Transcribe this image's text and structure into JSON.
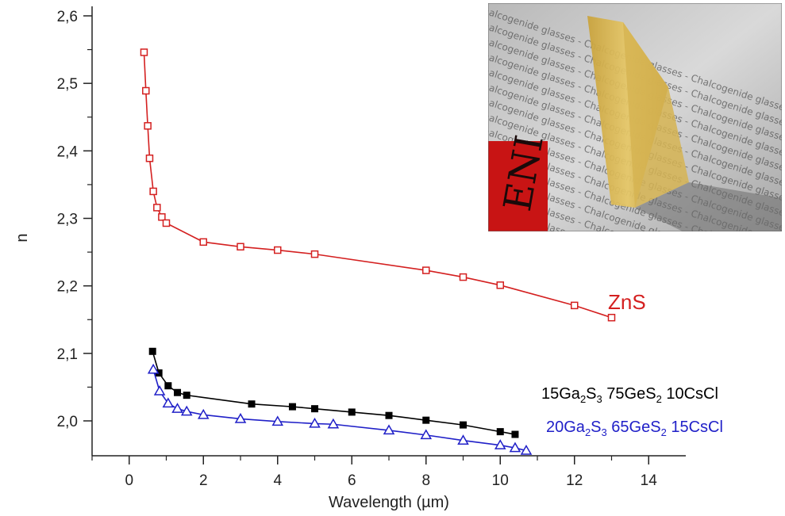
{
  "chart_data": {
    "type": "line",
    "title": "",
    "xlabel": "Wavelength (µm)",
    "ylabel": "n",
    "xlim": [
      -1,
      15
    ],
    "ylim": [
      1.95,
      2.6
    ],
    "x_ticks": [
      "0",
      "2",
      "4",
      "6",
      "8",
      "10",
      "12",
      "14"
    ],
    "y_ticks": [
      "2,0",
      "2,1",
      "2,2",
      "2,3",
      "2,4",
      "2,5",
      "2,6"
    ],
    "grid": false,
    "legend": "none",
    "series": [
      {
        "name": "ZnS",
        "color": "#d42020",
        "marker": "open-square",
        "x": [
          0.4,
          0.45,
          0.5,
          0.55,
          0.65,
          0.75,
          0.88,
          1.0,
          2.0,
          3.0,
          4.0,
          5.0,
          8.0,
          9.0,
          10.0,
          12.0,
          13.0
        ],
        "y": [
          2.546,
          2.489,
          2.437,
          2.389,
          2.34,
          2.316,
          2.302,
          2.293,
          2.265,
          2.258,
          2.253,
          2.247,
          2.223,
          2.213,
          2.201,
          2.171,
          2.153
        ]
      },
      {
        "label_parts": [
          "15Ga",
          "2",
          "S",
          "3",
          " 75GeS",
          "2",
          " 10CsCl"
        ],
        "color": "#000000",
        "marker": "filled-square",
        "x": [
          0.63,
          0.8,
          1.05,
          1.3,
          1.55,
          3.3,
          4.4,
          5.0,
          6.0,
          7.0,
          8.0,
          9.0,
          10.0,
          10.4
        ],
        "y": [
          2.103,
          2.071,
          2.052,
          2.042,
          2.038,
          2.025,
          2.021,
          2.018,
          2.013,
          2.008,
          2.001,
          1.994,
          1.984,
          1.98
        ]
      },
      {
        "label_parts": [
          "20Ga",
          "2",
          "S",
          "3",
          " 65GeS",
          "2",
          " 15CsCl"
        ],
        "color": "#2020c8",
        "marker": "open-triangle",
        "x": [
          0.65,
          0.82,
          1.05,
          1.3,
          1.55,
          2.0,
          3.0,
          4.0,
          5.0,
          5.5,
          7.0,
          8.0,
          9.0,
          10.0,
          10.4,
          10.7
        ],
        "y": [
          2.076,
          2.044,
          2.026,
          2.018,
          2.014,
          2.009,
          2.003,
          1.999,
          1.996,
          1.995,
          1.986,
          1.979,
          1.971,
          1.964,
          1.96,
          1.956
        ]
      }
    ]
  },
  "inset": {
    "photo_text": "Chalcogenide glasses",
    "red_label_text": "ENI"
  }
}
